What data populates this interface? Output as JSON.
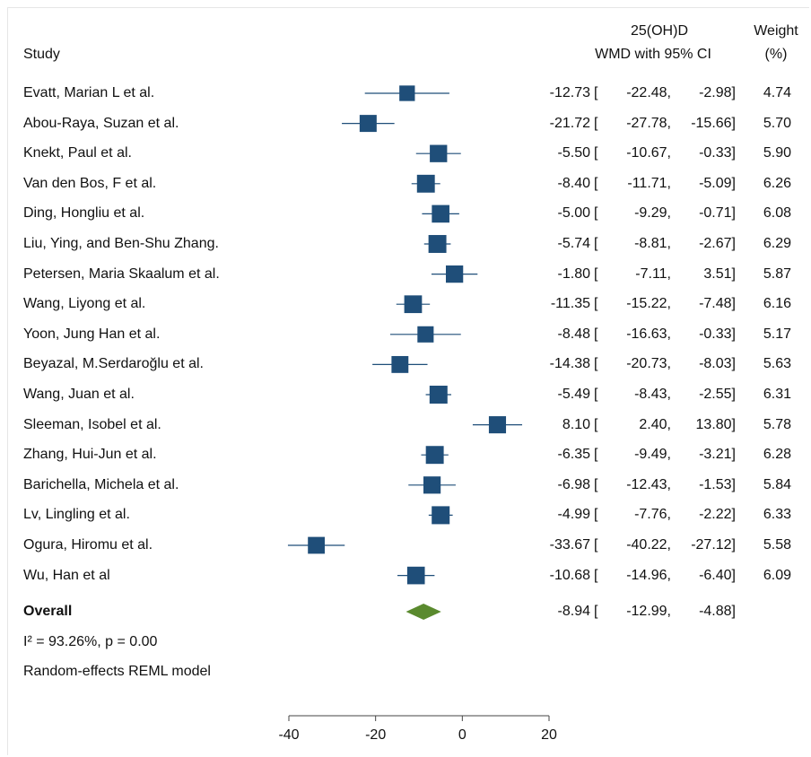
{
  "header": {
    "study": "Study",
    "effect_line1": "25(OH)D",
    "effect_line2": "WMD with 95% CI",
    "weight_line1": "Weight",
    "weight_line2": "(%)"
  },
  "footer": {
    "heterogeneity": "I² = 93.26%, p = 0.00",
    "model": "Random-effects REML model"
  },
  "colors": {
    "marker": "#1f4e79",
    "diamond": "#5a8a2e",
    "line": "#1f4e79"
  },
  "chart_data": {
    "type": "forest",
    "x_ticks": [
      -40,
      -20,
      0,
      20
    ],
    "xlim": [
      -40,
      20
    ],
    "studies": [
      {
        "name": "Evatt, Marian L et al.",
        "wmd": -12.73,
        "lo": -22.48,
        "hi": -2.98,
        "weight": 4.74,
        "wmd_text": "-12.73",
        "lo_text": "-22.48,",
        "hi_text": "-2.98]",
        "weight_text": "4.74"
      },
      {
        "name": "Abou-Raya, Suzan et al.",
        "wmd": -21.72,
        "lo": -27.78,
        "hi": -15.66,
        "weight": 5.7,
        "wmd_text": "-21.72",
        "lo_text": "-27.78,",
        "hi_text": "-15.66]",
        "weight_text": "5.70"
      },
      {
        "name": "Knekt, Paul et al.",
        "wmd": -5.5,
        "lo": -10.67,
        "hi": -0.33,
        "weight": 5.9,
        "wmd_text": "-5.50",
        "lo_text": "-10.67,",
        "hi_text": "-0.33]",
        "weight_text": "5.90"
      },
      {
        "name": "Van den Bos, F et al.",
        "wmd": -8.4,
        "lo": -11.71,
        "hi": -5.09,
        "weight": 6.26,
        "wmd_text": "-8.40",
        "lo_text": "-11.71,",
        "hi_text": "-5.09]",
        "weight_text": "6.26"
      },
      {
        "name": "Ding, Hongliu et al.",
        "wmd": -5.0,
        "lo": -9.29,
        "hi": -0.71,
        "weight": 6.08,
        "wmd_text": "-5.00",
        "lo_text": "-9.29,",
        "hi_text": "-0.71]",
        "weight_text": "6.08"
      },
      {
        "name": "Liu, Ying, and Ben-Shu Zhang.",
        "wmd": -5.74,
        "lo": -8.81,
        "hi": -2.67,
        "weight": 6.29,
        "wmd_text": "-5.74",
        "lo_text": "-8.81,",
        "hi_text": "-2.67]",
        "weight_text": "6.29"
      },
      {
        "name": "Petersen, Maria Skaalum et al.",
        "wmd": -1.8,
        "lo": -7.11,
        "hi": 3.51,
        "weight": 5.87,
        "wmd_text": "-1.80",
        "lo_text": "-7.11,",
        "hi_text": "3.51]",
        "weight_text": "5.87"
      },
      {
        "name": "Wang, Liyong et al.",
        "wmd": -11.35,
        "lo": -15.22,
        "hi": -7.48,
        "weight": 6.16,
        "wmd_text": "-11.35",
        "lo_text": "-15.22,",
        "hi_text": "-7.48]",
        "weight_text": "6.16"
      },
      {
        "name": "Yoon, Jung Han et al.",
        "wmd": -8.48,
        "lo": -16.63,
        "hi": -0.33,
        "weight": 5.17,
        "wmd_text": "-8.48",
        "lo_text": "-16.63,",
        "hi_text": "-0.33]",
        "weight_text": "5.17"
      },
      {
        "name": "Beyazal, M.Serdaroğlu  et al.",
        "wmd": -14.38,
        "lo": -20.73,
        "hi": -8.03,
        "weight": 5.63,
        "wmd_text": "-14.38",
        "lo_text": "-20.73,",
        "hi_text": "-8.03]",
        "weight_text": "5.63"
      },
      {
        "name": "Wang, Juan et al.",
        "wmd": -5.49,
        "lo": -8.43,
        "hi": -2.55,
        "weight": 6.31,
        "wmd_text": "-5.49",
        "lo_text": "-8.43,",
        "hi_text": "-2.55]",
        "weight_text": "6.31"
      },
      {
        "name": "Sleeman, Isobel et al.",
        "wmd": 8.1,
        "lo": 2.4,
        "hi": 13.8,
        "weight": 5.78,
        "wmd_text": "8.10",
        "lo_text": "2.40,",
        "hi_text": "13.80]",
        "weight_text": "5.78"
      },
      {
        "name": "Zhang, Hui-Jun et al.",
        "wmd": -6.35,
        "lo": -9.49,
        "hi": -3.21,
        "weight": 6.28,
        "wmd_text": "-6.35",
        "lo_text": "-9.49,",
        "hi_text": "-3.21]",
        "weight_text": "6.28"
      },
      {
        "name": "Barichella, Michela et al.",
        "wmd": -6.98,
        "lo": -12.43,
        "hi": -1.53,
        "weight": 5.84,
        "wmd_text": "-6.98",
        "lo_text": "-12.43,",
        "hi_text": "-1.53]",
        "weight_text": "5.84"
      },
      {
        "name": "Lv, Lingling et al.",
        "wmd": -4.99,
        "lo": -7.76,
        "hi": -2.22,
        "weight": 6.33,
        "wmd_text": "-4.99",
        "lo_text": "-7.76,",
        "hi_text": "-2.22]",
        "weight_text": "6.33"
      },
      {
        "name": "Ogura, Hiromu et al.",
        "wmd": -33.67,
        "lo": -40.22,
        "hi": -27.12,
        "weight": 5.58,
        "wmd_text": "-33.67",
        "lo_text": "-40.22,",
        "hi_text": "-27.12]",
        "weight_text": "5.58"
      },
      {
        "name": "Wu, Han et al",
        "wmd": -10.68,
        "lo": -14.96,
        "hi": -6.4,
        "weight": 6.09,
        "wmd_text": "-10.68",
        "lo_text": "-14.96,",
        "hi_text": "-6.40]",
        "weight_text": "6.09"
      }
    ],
    "overall": {
      "name": "Overall",
      "wmd": -8.94,
      "lo": -12.99,
      "hi": -4.88,
      "wmd_text": "-8.94",
      "lo_text": "-12.99,",
      "hi_text": "-4.88]"
    }
  }
}
